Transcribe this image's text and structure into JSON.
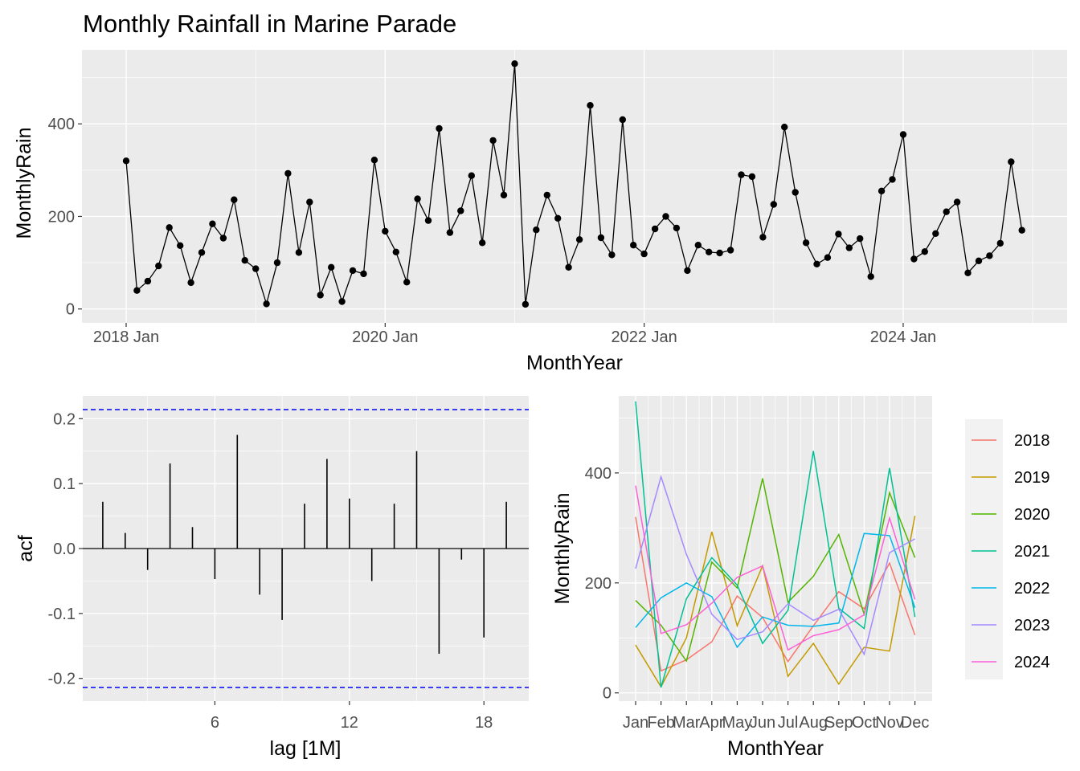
{
  "chart_data": [
    {
      "type": "line",
      "title": "Monthly Rainfall in Marine Parade",
      "xlabel": "MonthYear",
      "ylabel": "MonthlyRain",
      "x_start": "2018 Jan",
      "x_ticks": [
        "2018 Jan",
        "2020 Jan",
        "2022 Jan",
        "2024 Jan"
      ],
      "y_ticks": [
        0,
        200,
        400
      ],
      "ylim": [
        -30,
        560
      ],
      "grid": true,
      "markers": true,
      "values": [
        320,
        40,
        60,
        93,
        176,
        137,
        57,
        122,
        184,
        153,
        236,
        105,
        87,
        11,
        100,
        293,
        122,
        231,
        30,
        90,
        16,
        83,
        76,
        322,
        168,
        123,
        58,
        238,
        191,
        390,
        165,
        212,
        288,
        143,
        364,
        246,
        530,
        10,
        171,
        246,
        196,
        90,
        150,
        440,
        154,
        117,
        409,
        138,
        119,
        173,
        200,
        175,
        83,
        138,
        123,
        121,
        127,
        290,
        286,
        155,
        226,
        393,
        252,
        143,
        97,
        111,
        162,
        132,
        152,
        70,
        255,
        280,
        377,
        108,
        124,
        163,
        210,
        231,
        78,
        104,
        115,
        142,
        318,
        170
      ]
    },
    {
      "type": "bar",
      "xlabel": "lag [1M]",
      "ylabel": "acf",
      "lags": [
        1,
        2,
        3,
        4,
        5,
        6,
        7,
        8,
        9,
        10,
        11,
        12,
        13,
        14,
        15,
        16,
        17,
        18,
        19
      ],
      "values": [
        0.072,
        0.024,
        -0.033,
        0.131,
        0.033,
        -0.047,
        0.175,
        -0.071,
        -0.11,
        0.069,
        0.138,
        0.077,
        -0.05,
        0.069,
        0.15,
        -0.162,
        -0.017,
        -0.137,
        0.072
      ],
      "x_ticks": [
        6,
        12,
        18
      ],
      "y_ticks": [
        -0.2,
        -0.1,
        0.0,
        0.1,
        0.2
      ],
      "ci": 0.214,
      "ci_color": "#0000FF",
      "xlim": [
        0,
        20
      ],
      "ylim": [
        -0.235,
        0.235
      ]
    },
    {
      "type": "line",
      "xlabel": "MonthYear",
      "ylabel": "MonthlyRain",
      "categories": [
        "Jan",
        "Feb",
        "Mar",
        "Apr",
        "May",
        "Jun",
        "Jul",
        "Aug",
        "Sep",
        "Oct",
        "Nov",
        "Dec"
      ],
      "y_ticks": [
        0,
        200,
        400
      ],
      "ylim": [
        -15,
        540
      ],
      "legend_position": "right",
      "series": [
        {
          "name": "2018",
          "color": "#F8766D",
          "values": [
            320,
            40,
            60,
            93,
            176,
            137,
            57,
            122,
            184,
            153,
            236,
            105
          ]
        },
        {
          "name": "2019",
          "color": "#C49A00",
          "values": [
            87,
            11,
            100,
            293,
            122,
            231,
            30,
            90,
            16,
            83,
            76,
            322
          ]
        },
        {
          "name": "2020",
          "color": "#53B400",
          "values": [
            168,
            123,
            58,
            238,
            191,
            390,
            165,
            212,
            288,
            143,
            364,
            246
          ]
        },
        {
          "name": "2021",
          "color": "#00C094",
          "values": [
            530,
            10,
            171,
            246,
            196,
            90,
            150,
            440,
            154,
            117,
            409,
            138
          ]
        },
        {
          "name": "2022",
          "color": "#00B6EB",
          "values": [
            119,
            173,
            200,
            175,
            83,
            138,
            123,
            121,
            127,
            290,
            286,
            155
          ]
        },
        {
          "name": "2023",
          "color": "#A58AFF",
          "values": [
            226,
            393,
            252,
            143,
            97,
            111,
            162,
            132,
            152,
            70,
            255,
            280
          ]
        },
        {
          "name": "2024",
          "color": "#FB61D7",
          "values": [
            377,
            108,
            124,
            163,
            210,
            231,
            78,
            104,
            115,
            142,
            318,
            170
          ]
        }
      ]
    }
  ]
}
